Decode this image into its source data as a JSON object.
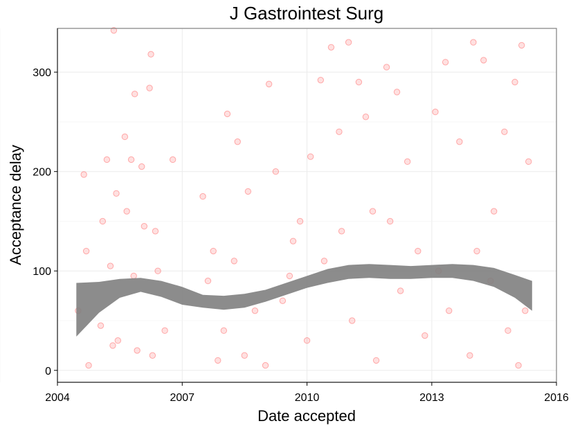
{
  "chart_data": {
    "type": "scatter",
    "title": "J Gastrointest Surg",
    "xlabel": "Date accepted",
    "ylabel": "Acceptance delay",
    "xlim": [
      "2004-01-01",
      "2016-01-01"
    ],
    "ylim": [
      -12,
      344
    ],
    "x_ticks": [
      "2004",
      "2007",
      "2010",
      "2013",
      "2016"
    ],
    "y_ticks": [
      "0",
      "100",
      "200",
      "300"
    ],
    "grid": true,
    "point_color": "#ff0000",
    "smooth_color": "#808080",
    "smooth": {
      "x": [
        "2004-06-15",
        "2005-01-01",
        "2005-07-01",
        "2006-01-01",
        "2006-07-01",
        "2007-01-01",
        "2007-07-01",
        "2008-01-01",
        "2008-07-01",
        "2009-01-01",
        "2009-07-01",
        "2010-01-01",
        "2010-07-01",
        "2011-01-01",
        "2011-07-01",
        "2012-01-01",
        "2012-07-01",
        "2013-01-01",
        "2013-07-01",
        "2014-01-01",
        "2014-07-01",
        "2015-01-01",
        "2015-06-01"
      ],
      "fit": [
        62,
        74,
        83,
        86,
        82,
        75,
        70,
        68,
        70,
        75,
        82,
        89,
        95,
        99,
        100,
        99,
        99,
        100,
        100,
        98,
        93,
        84,
        75
      ],
      "upper": [
        88,
        89,
        92,
        93,
        90,
        84,
        76,
        75,
        77,
        81,
        88,
        95,
        102,
        106,
        107,
        106,
        105,
        106,
        107,
        106,
        103,
        96,
        90
      ],
      "lower": [
        34,
        58,
        73,
        79,
        74,
        66,
        63,
        61,
        63,
        69,
        76,
        83,
        88,
        92,
        93,
        92,
        92,
        93,
        93,
        90,
        84,
        73,
        60
      ]
    },
    "points": [
      {
        "x": "2005-05-10",
        "y": 342
      },
      {
        "x": "2006-04-01",
        "y": 318
      },
      {
        "x": "2006-03-20",
        "y": 284
      },
      {
        "x": "2005-11-10",
        "y": 278
      },
      {
        "x": "2005-08-15",
        "y": 235
      },
      {
        "x": "2005-10-10",
        "y": 212
      },
      {
        "x": "2004-08-20",
        "y": 197
      },
      {
        "x": "2005-03-10",
        "y": 212
      },
      {
        "x": "2006-10-10",
        "y": 212
      },
      {
        "x": "2005-06-01",
        "y": 178
      },
      {
        "x": "2006-01-10",
        "y": 205
      },
      {
        "x": "2005-02-01",
        "y": 150
      },
      {
        "x": "2005-09-01",
        "y": 160
      },
      {
        "x": "2006-02-01",
        "y": 145
      },
      {
        "x": "2006-05-10",
        "y": 140
      },
      {
        "x": "2004-09-10",
        "y": 120
      },
      {
        "x": "2005-04-10",
        "y": 105
      },
      {
        "x": "2005-11-01",
        "y": 95
      },
      {
        "x": "2006-06-01",
        "y": 100
      },
      {
        "x": "2004-07-01",
        "y": 60
      },
      {
        "x": "2005-01-15",
        "y": 45
      },
      {
        "x": "2005-06-15",
        "y": 30
      },
      {
        "x": "2005-12-01",
        "y": 20
      },
      {
        "x": "2006-04-15",
        "y": 15
      },
      {
        "x": "2004-10-01",
        "y": 5
      },
      {
        "x": "2005-05-01",
        "y": 25
      },
      {
        "x": "2006-08-01",
        "y": 40
      },
      {
        "x": "2007-07-01",
        "y": 175
      },
      {
        "x": "2007-10-01",
        "y": 120
      },
      {
        "x": "2007-11-10",
        "y": 10
      },
      {
        "x": "2008-02-01",
        "y": 258
      },
      {
        "x": "2008-05-01",
        "y": 230
      },
      {
        "x": "2008-08-01",
        "y": 180
      },
      {
        "x": "2008-10-01",
        "y": 60
      },
      {
        "x": "2009-02-01",
        "y": 288
      },
      {
        "x": "2009-04-01",
        "y": 200
      },
      {
        "x": "2009-08-01",
        "y": 95
      },
      {
        "x": "2009-11-01",
        "y": 150
      },
      {
        "x": "2010-02-01",
        "y": 215
      },
      {
        "x": "2010-05-01",
        "y": 292
      },
      {
        "x": "2010-08-01",
        "y": 325
      },
      {
        "x": "2010-10-10",
        "y": 240
      },
      {
        "x": "2011-01-01",
        "y": 330
      },
      {
        "x": "2011-04-01",
        "y": 290
      },
      {
        "x": "2011-06-01",
        "y": 255
      },
      {
        "x": "2011-08-01",
        "y": 160
      },
      {
        "x": "2011-12-01",
        "y": 305
      },
      {
        "x": "2012-03-01",
        "y": 280
      },
      {
        "x": "2012-06-01",
        "y": 210
      },
      {
        "x": "2012-09-01",
        "y": 120
      },
      {
        "x": "2013-02-01",
        "y": 260
      },
      {
        "x": "2013-05-01",
        "y": 310
      },
      {
        "x": "2013-09-01",
        "y": 230
      },
      {
        "x": "2014-01-01",
        "y": 330
      },
      {
        "x": "2014-04-01",
        "y": 312
      },
      {
        "x": "2014-07-01",
        "y": 160
      },
      {
        "x": "2014-10-01",
        "y": 240
      },
      {
        "x": "2015-01-01",
        "y": 290
      },
      {
        "x": "2015-03-01",
        "y": 327
      },
      {
        "x": "2015-05-01",
        "y": 210
      },
      {
        "x": "2008-01-01",
        "y": 40
      },
      {
        "x": "2008-07-01",
        "y": 15
      },
      {
        "x": "2009-01-01",
        "y": 5
      },
      {
        "x": "2009-06-01",
        "y": 70
      },
      {
        "x": "2010-01-01",
        "y": 30
      },
      {
        "x": "2010-06-01",
        "y": 110
      },
      {
        "x": "2011-02-01",
        "y": 50
      },
      {
        "x": "2011-09-01",
        "y": 10
      },
      {
        "x": "2012-04-01",
        "y": 80
      },
      {
        "x": "2012-11-01",
        "y": 35
      },
      {
        "x": "2013-06-01",
        "y": 60
      },
      {
        "x": "2013-12-01",
        "y": 15
      },
      {
        "x": "2014-06-01",
        "y": 90
      },
      {
        "x": "2014-11-01",
        "y": 40
      },
      {
        "x": "2015-02-01",
        "y": 5
      },
      {
        "x": "2015-04-01",
        "y": 60
      },
      {
        "x": "2007-08-15",
        "y": 90
      },
      {
        "x": "2008-04-01",
        "y": 110
      },
      {
        "x": "2009-09-01",
        "y": 130
      },
      {
        "x": "2010-11-01",
        "y": 140
      },
      {
        "x": "2012-01-01",
        "y": 150
      },
      {
        "x": "2013-03-01",
        "y": 100
      },
      {
        "x": "2014-02-01",
        "y": 120
      }
    ]
  }
}
